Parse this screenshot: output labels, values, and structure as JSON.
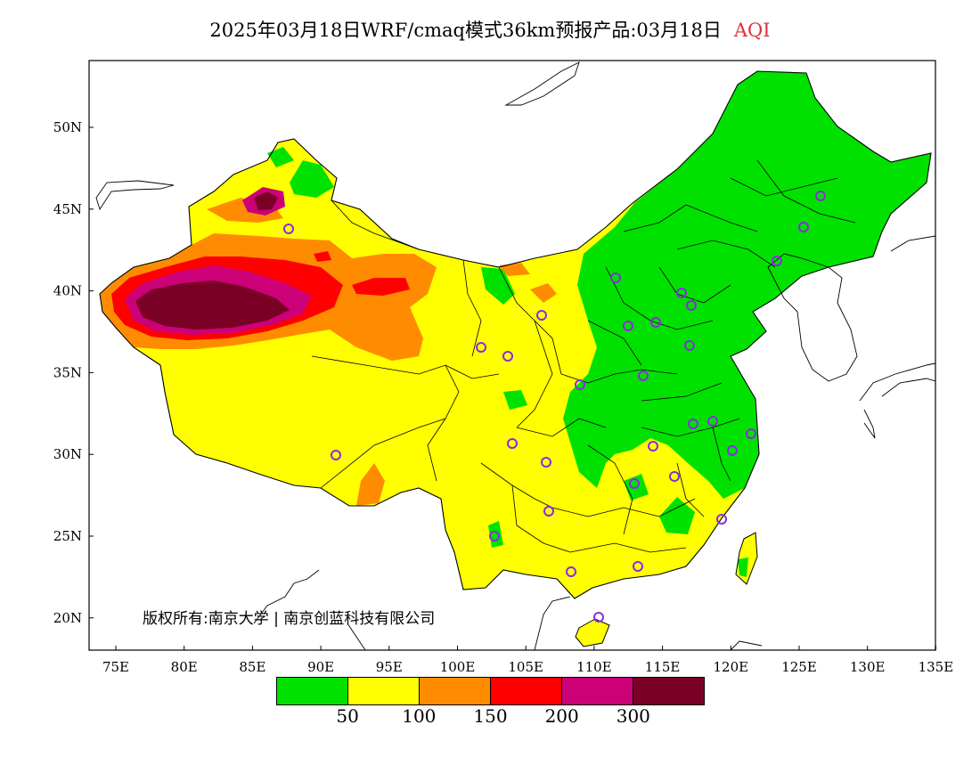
{
  "title": {
    "main": "2025年03月18日WRF/cmaq模式36km预报产品:03月18日",
    "variable": "AQI",
    "variable_color": "#e0303a"
  },
  "x_ticks": [
    "75E",
    "80E",
    "85E",
    "90E",
    "95E",
    "100E",
    "105E",
    "110E",
    "115E",
    "120E",
    "125E",
    "130E",
    "135E"
  ],
  "y_ticks": [
    "50N",
    "45N",
    "40N",
    "35N",
    "30N",
    "25N",
    "20N"
  ],
  "copyright": "版权所有:南京大学 | 南京创蓝科技有限公司",
  "legend": {
    "colors": [
      "#00e100",
      "#ffff00",
      "#ff8c00",
      "#ff0000",
      "#cc0077",
      "#7a0026"
    ],
    "labels": [
      "50",
      "100",
      "150",
      "200",
      "300"
    ]
  },
  "palette": {
    "good": "#00e100",
    "moderate": "#ffff00",
    "usg": "#ff8c00",
    "unhealthy": "#ff0000",
    "very_unhealthy": "#cc0077",
    "hazardous": "#7a0026",
    "station": "#8a2be2"
  }
}
